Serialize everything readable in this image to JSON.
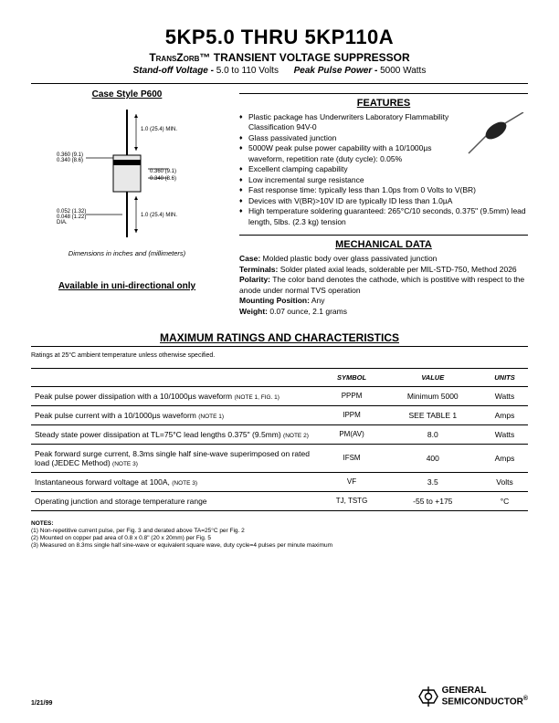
{
  "header": {
    "title": "5KP5.0 THRU 5KP110A",
    "subtitle_prefix": "TransZorb™",
    "subtitle_rest": " TRANSIENT VOLTAGE SUPPRESSOR",
    "spec_left_label": "Stand-off Voltage - ",
    "spec_left_val": "5.0 to 110 Volts",
    "spec_right_label": "Peak Pulse Power - ",
    "spec_right_val": "5000 Watts"
  },
  "left": {
    "case_title": "Case Style P600",
    "dims_caption": "Dimensions in inches and (millimeters)",
    "availability": "Available in uni-directional only",
    "diagram": {
      "labels": {
        "top_len": "1.0 (25.4) MIN.",
        "left_a": "0.360 (9.1)",
        "left_b": "0.340 (8.6)",
        "body_a": "0.360 (9.1)",
        "body_b": "0.340 (8.6)",
        "lead_a": "0.052 (1.32)",
        "lead_b": "0.048 (1.22)",
        "dia": "DIA.",
        "bot_len": "1.0 (25.4) MIN."
      }
    }
  },
  "features": {
    "title": "FEATURES",
    "items": [
      "Plastic package has Underwriters Laboratory Flammability Classification 94V-0",
      "Glass passivated junction",
      "5000W peak pulse power capability with a 10/1000µs waveform, repetition rate (duty cycle): 0.05%",
      "Excellent clamping capability",
      "Low incremental surge resistance",
      "Fast response time: typically less than 1.0ps from 0 Volts to V(BR)",
      "Devices with V(BR)>10V ID are typically ID less than 1.0µA",
      "High temperature soldering guaranteed: 265°C/10 seconds, 0.375\" (9.5mm) lead length, 5lbs. (2.3 kg) tension"
    ]
  },
  "mechanical": {
    "title": "MECHANICAL DATA",
    "case_label": "Case:",
    "case_val": " Molded plastic body over glass passivated junction",
    "term_label": "Terminals:",
    "term_val": " Solder plated axial leads, solderable per MIL-STD-750, Method 2026",
    "pol_label": "Polarity:",
    "pol_val": " The color band denotes the cathode, which is postitive with respect to the anode under normal TVS operation",
    "mount_label": "Mounting Position:",
    "mount_val": " Any",
    "weight_label": "Weight:",
    "weight_val": " 0.07 ounce, 2.1 grams"
  },
  "max": {
    "title": "MAXIMUM RATINGS AND CHARACTERISTICS",
    "note": "Ratings at 25°C ambient temperature unless otherwise specified.",
    "headers": {
      "symbol": "SYMBOL",
      "value": "VALUE",
      "units": "UNITS"
    },
    "rows": [
      {
        "desc": "Peak pulse power dissipation with a 10/1000µs waveform",
        "note": "(NOTE 1, FIG. 1)",
        "symbol": "PPPM",
        "value": "Minimum 5000",
        "units": "Watts"
      },
      {
        "desc": "Peak pulse current with a 10/1000µs waveform",
        "note": "(NOTE 1)",
        "symbol": "IPPM",
        "value": "SEE TABLE 1",
        "units": "Amps"
      },
      {
        "desc": "Steady state power dissipation at TL=75°C lead lengths 0.375\" (9.5mm)",
        "note": "(NOTE 2)",
        "symbol": "PM(AV)",
        "value": "8.0",
        "units": "Watts"
      },
      {
        "desc": "Peak forward surge current, 8.3ms single half sine-wave superimposed on rated load (JEDEC Method)",
        "note": "(NOTE 3)",
        "symbol": "IFSM",
        "value": "400",
        "units": "Amps"
      },
      {
        "desc": "Instantaneous forward voltage at 100A,",
        "note": "(NOTE 3)",
        "symbol": "VF",
        "value": "3.5",
        "units": "Volts"
      },
      {
        "desc": "Operating junction and storage temperature range",
        "note": "",
        "symbol": "TJ, TSTG",
        "value": "-55 to +175",
        "units": "°C"
      }
    ]
  },
  "notes": {
    "heading": "NOTES:",
    "lines": [
      "(1) Non-repetitive current pulse, per Fig. 3 and derated above TA=25°C per Fig. 2",
      "(2) Mounted on copper pad area of 0.8 x 0.8\" (20 x 20mm) per Fig. 5",
      "(3) Measured on 8.3ms single half sine-wave or equivalent square wave, duty cycle=4 pulses per minute maximum"
    ]
  },
  "footer": {
    "date": "1/21/99",
    "logo_top": "GENERAL",
    "logo_bot": "SEMICONDUCTOR",
    "reg": "®"
  }
}
